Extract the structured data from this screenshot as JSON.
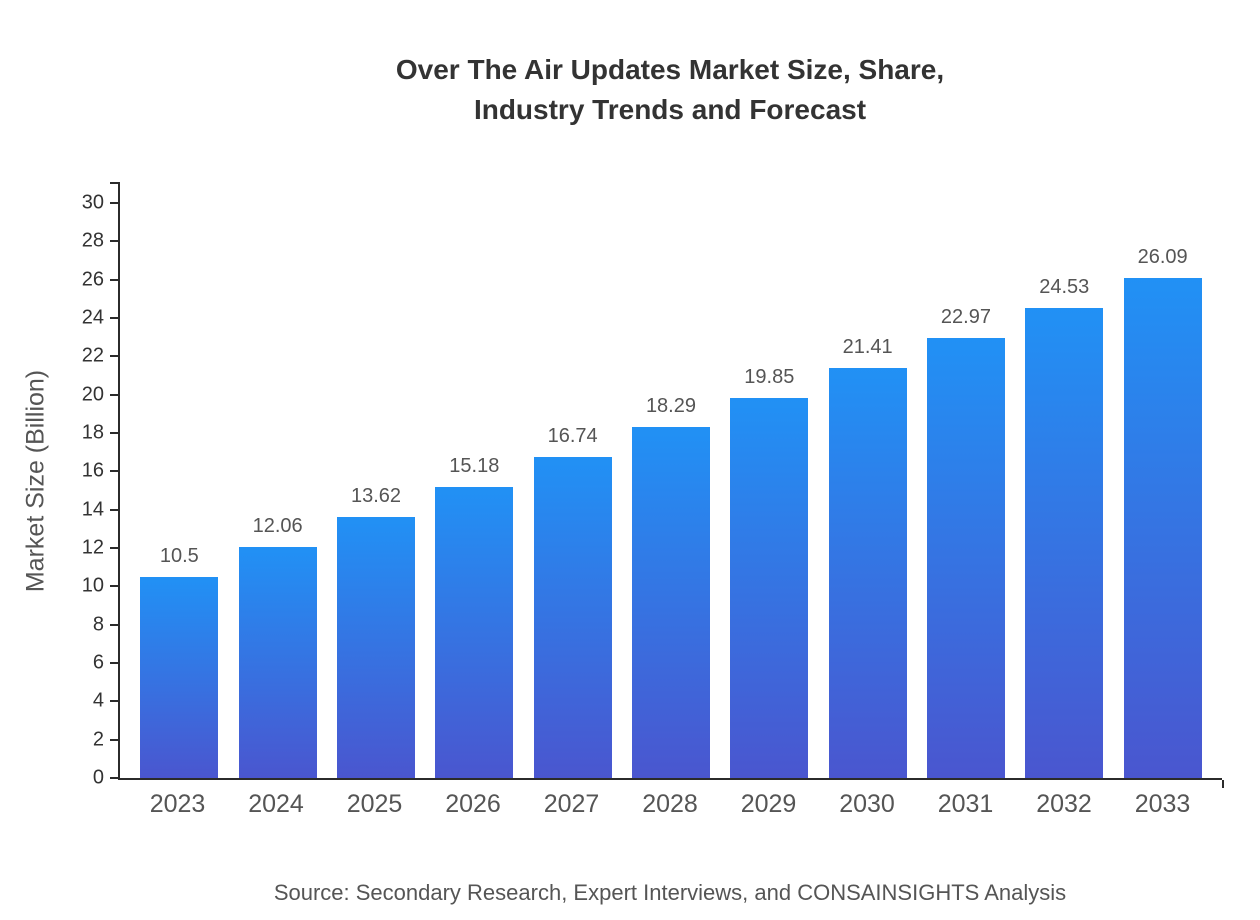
{
  "title": {
    "line1": "Over The Air Updates Market Size, Share,",
    "line2": "Industry Trends and Forecast"
  },
  "y_axis_title": "Market Size (Billion)",
  "source": "Source: Secondary Research, Expert Interviews, and CONSAINSIGHTS Analysis",
  "colors": {
    "bar_top": "#2191f5",
    "bar_bottom": "#4a56cf",
    "axis": "#2b2b2b",
    "tick_label": "#333333",
    "value_label": "#555555"
  },
  "chart_data": {
    "type": "bar",
    "title": "Over The Air Updates Market Size, Share, Industry Trends and Forecast",
    "categories": [
      "2023",
      "2024",
      "2025",
      "2026",
      "2027",
      "2028",
      "2029",
      "2030",
      "2031",
      "2032",
      "2033"
    ],
    "values": [
      10.5,
      12.06,
      13.62,
      15.18,
      16.74,
      18.29,
      19.85,
      21.41,
      22.97,
      24.53,
      26.09
    ],
    "data_labels": [
      "10.5",
      "12.06",
      "13.62",
      "15.18",
      "16.74",
      "18.29",
      "19.85",
      "21.41",
      "22.97",
      "24.53",
      "26.09"
    ],
    "xlabel": "",
    "ylabel": "Market Size (Billion)",
    "ylim": [
      0,
      30
    ],
    "ytick_step": 2,
    "grid": false,
    "legend": "none"
  }
}
